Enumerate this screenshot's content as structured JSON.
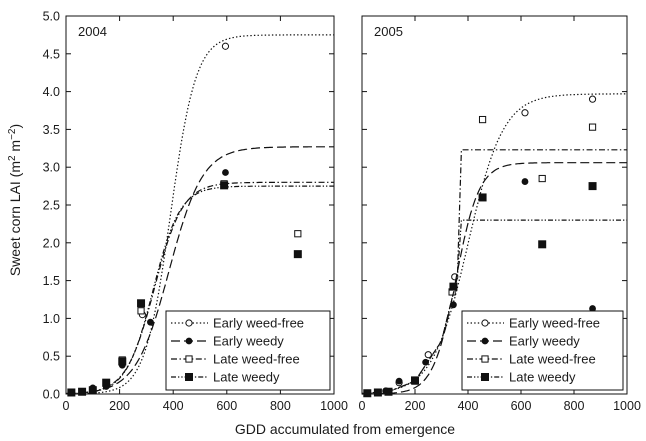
{
  "figure": {
    "ylabel_main": "Sweet corn LAI (m",
    "ylabel_sup1": "2",
    "ylabel_mid": " m",
    "ylabel_sup2": "−2",
    "ylabel_end": ")",
    "xlabel": "GDD accumulated from emergence"
  },
  "chart_data": [
    {
      "type": "line",
      "panel_label": "2004",
      "xlim": [
        0,
        1000
      ],
      "ylim": [
        0,
        5
      ],
      "x_ticks": [
        0,
        200,
        400,
        600,
        800,
        1000
      ],
      "y_ticks": [
        0.0,
        0.5,
        1.0,
        1.5,
        2.0,
        2.5,
        3.0,
        3.5,
        4.0,
        4.5,
        5.0
      ],
      "legend_position": "bottom-right",
      "series": [
        {
          "name": "Early weed-free",
          "line_style": "dotted",
          "marker": "open-circle",
          "curve": {
            "asymptote": 4.75,
            "midpoint": 390,
            "steepness": 0.021
          },
          "points": [
            [
              20,
              0.02
            ],
            [
              60,
              0.03
            ],
            [
              100,
              0.07
            ],
            [
              150,
              0.12
            ],
            [
              210,
              0.4
            ],
            [
              285,
              1.05
            ],
            [
              595,
              4.6
            ]
          ]
        },
        {
          "name": "Early weedy",
          "line_style": "long-dash",
          "marker": "filled-circle",
          "curve": {
            "asymptote": 3.27,
            "midpoint": 385,
            "steepness": 0.016
          },
          "points": [
            [
              20,
              0.02
            ],
            [
              60,
              0.03
            ],
            [
              100,
              0.08
            ],
            [
              150,
              0.1
            ],
            [
              210,
              0.38
            ],
            [
              315,
              0.95
            ],
            [
              595,
              2.93
            ]
          ]
        },
        {
          "name": "Late weed-free",
          "line_style": "dash-dot",
          "marker": "open-square",
          "curve": {
            "asymptote": 2.8,
            "midpoint": 330,
            "steepness": 0.019
          },
          "points": [
            [
              20,
              0.02
            ],
            [
              60,
              0.03
            ],
            [
              100,
              0.05
            ],
            [
              150,
              0.14
            ],
            [
              210,
              0.45
            ],
            [
              280,
              1.1
            ],
            [
              590,
              2.78
            ],
            [
              865,
              2.12
            ]
          ]
        },
        {
          "name": "Late weedy",
          "line_style": "dash-dot-dot",
          "marker": "filled-square",
          "curve": {
            "asymptote": 2.75,
            "midpoint": 325,
            "steepness": 0.02
          },
          "points": [
            [
              20,
              0.02
            ],
            [
              60,
              0.03
            ],
            [
              100,
              0.05
            ],
            [
              150,
              0.15
            ],
            [
              210,
              0.43
            ],
            [
              280,
              1.2
            ],
            [
              590,
              2.76
            ],
            [
              865,
              1.85
            ]
          ]
        }
      ]
    },
    {
      "type": "line",
      "panel_label": "2005",
      "xlim": [
        0,
        1000
      ],
      "ylim": [
        0,
        5
      ],
      "x_ticks": [
        0,
        200,
        400,
        600,
        800,
        1000
      ],
      "y_ticks": [
        0.0,
        0.5,
        1.0,
        1.5,
        2.0,
        2.5,
        3.0,
        3.5,
        4.0,
        4.5,
        5.0
      ],
      "legend_position": "bottom-right",
      "series": [
        {
          "name": "Early weed-free",
          "line_style": "dotted",
          "marker": "open-circle",
          "curve": {
            "asymptote": 3.97,
            "midpoint": 400,
            "steepness": 0.015
          },
          "points": [
            [
              20,
              0.01
            ],
            [
              60,
              0.02
            ],
            [
              90,
              0.04
            ],
            [
              140,
              0.15
            ],
            [
              250,
              0.52
            ],
            [
              350,
              1.55
            ],
            [
              615,
              3.72
            ],
            [
              870,
              3.9
            ]
          ]
        },
        {
          "name": "Early weedy",
          "line_style": "long-dash",
          "marker": "filled-circle",
          "curve": {
            "asymptote": 3.06,
            "midpoint": 355,
            "steepness": 0.023
          },
          "points": [
            [
              20,
              0.01
            ],
            [
              60,
              0.02
            ],
            [
              90,
              0.04
            ],
            [
              140,
              0.17
            ],
            [
              240,
              0.42
            ],
            [
              345,
              1.18
            ],
            [
              615,
              2.81
            ],
            [
              870,
              1.13
            ]
          ]
        },
        {
          "name": "Late weed-free",
          "line_style": "dash-dot",
          "marker": "open-square",
          "piecewise": [
            [
              0,
              0.0
            ],
            [
              100,
              0.03
            ],
            [
              200,
              0.17
            ],
            [
              300,
              0.7
            ],
            [
              360,
              1.55
            ],
            [
              375,
              3.23
            ],
            [
              1000,
              3.23
            ]
          ],
          "points": [
            [
              20,
              0.01
            ],
            [
              60,
              0.02
            ],
            [
              100,
              0.03
            ],
            [
              200,
              0.17
            ],
            [
              340,
              1.35
            ],
            [
              455,
              3.63
            ],
            [
              680,
              2.85
            ],
            [
              870,
              3.53
            ]
          ]
        },
        {
          "name": "Late weedy",
          "line_style": "dash-dot-dot",
          "marker": "filled-square",
          "piecewise": [
            [
              0,
              0.0
            ],
            [
              100,
              0.03
            ],
            [
              200,
              0.17
            ],
            [
              300,
              0.7
            ],
            [
              360,
              1.55
            ],
            [
              375,
              2.3
            ],
            [
              1000,
              2.3
            ]
          ],
          "points": [
            [
              20,
              0.01
            ],
            [
              60,
              0.02
            ],
            [
              100,
              0.03
            ],
            [
              200,
              0.18
            ],
            [
              345,
              1.42
            ],
            [
              455,
              2.6
            ],
            [
              680,
              1.98
            ],
            [
              870,
              2.75
            ]
          ]
        }
      ]
    }
  ]
}
